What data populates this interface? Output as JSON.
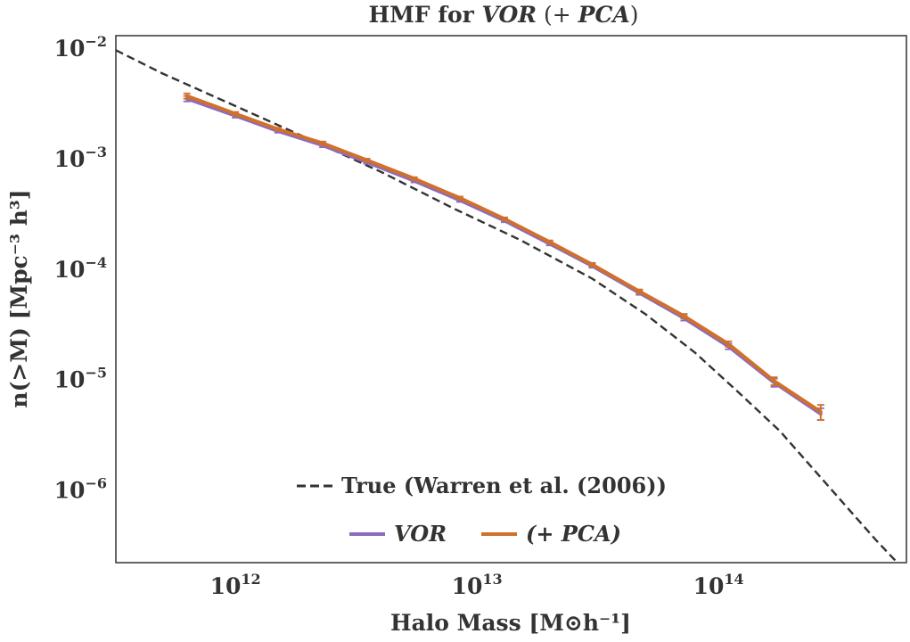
{
  "chart_data": {
    "type": "line",
    "title_prefix": "HMF for ",
    "title_emph1": "VOR",
    "title_mid": " (+ ",
    "title_emph2": "PCA",
    "title_suffix": ")",
    "xlabel": "Halo Mass [M⊙h⁻¹]",
    "ylabel": "n(>M) [Mpc⁻³ h³]",
    "x_scale": "log",
    "y_scale": "log",
    "xlim": [
      320000000000.0,
      600000000000000.0
    ],
    "ylim": [
      2.2e-07,
      0.013
    ],
    "x_ticks": [
      {
        "value": 1000000000000.0,
        "base": "10",
        "exp": "12"
      },
      {
        "value": 10000000000000.0,
        "base": "10",
        "exp": "13"
      },
      {
        "value": 100000000000000.0,
        "base": "10",
        "exp": "14"
      }
    ],
    "y_ticks": [
      {
        "value": 0.01,
        "base": "10",
        "exp": "−2"
      },
      {
        "value": 0.001,
        "base": "10",
        "exp": "−3"
      },
      {
        "value": 0.0001,
        "base": "10",
        "exp": "−4"
      },
      {
        "value": 1e-05,
        "base": "10",
        "exp": "−5"
      },
      {
        "value": 1e-06,
        "base": "10",
        "exp": "−6"
      }
    ],
    "grid": false,
    "legend_placement": "bottom-center",
    "series": [
      {
        "name": "True (Warren et al. (2006))",
        "style": "dashed",
        "color": "#333333",
        "x": [
          320000000000.0,
          500000000000.0,
          1000000000000.0,
          2000000000000.0,
          4000000000000.0,
          8000000000000.0,
          15000000000000.0,
          30000000000000.0,
          50000000000000.0,
          80000000000000.0,
          120000000000000.0,
          180000000000000.0,
          250000000000000.0,
          350000000000000.0,
          450000000000000.0,
          600000000000000.0
        ],
        "y": [
          0.0096,
          0.0059,
          0.003,
          0.00152,
          0.00076,
          0.000355,
          0.000185,
          8.2e-05,
          3.9e-05,
          1.75e-05,
          7.8e-06,
          3.4e-06,
          1.5e-06,
          6.5e-07,
          3.5e-07,
          1.8e-07
        ]
      },
      {
        "name": "VOR",
        "style": "solid",
        "color": "#8c6bbf",
        "x": [
          630000000000.0,
          1000000000000.0,
          1500000000000.0,
          2300000000000.0,
          3500000000000.0,
          5500000000000.0,
          8500000000000.0,
          13000000000000.0,
          20000000000000.0,
          30000000000000.0,
          47000000000000.0,
          72000000000000.0,
          110000000000000.0,
          170000000000000.0,
          265000000000000.0
        ],
        "y": [
          0.0035,
          0.00245,
          0.00178,
          0.00132,
          0.00093,
          0.00063,
          0.00042,
          0.000275,
          0.00017,
          0.000107,
          6.1e-05,
          3.6e-05,
          2e-05,
          9.4e-06,
          4.9e-06
        ],
        "err": [
          0.0002,
          0.0001,
          6e-05,
          5e-05,
          3e-05,
          2e-05,
          1.4e-05,
          9e-06,
          6e-06,
          4e-06,
          2.5e-06,
          1.8e-06,
          1.2e-06,
          8e-07,
          6e-07
        ]
      },
      {
        "name": "(+ PCA)",
        "style": "solid",
        "color": "#d0702b",
        "x": [
          630000000000.0,
          1000000000000.0,
          1500000000000.0,
          2300000000000.0,
          3500000000000.0,
          5500000000000.0,
          8500000000000.0,
          13000000000000.0,
          20000000000000.0,
          30000000000000.0,
          47000000000000.0,
          72000000000000.0,
          110000000000000.0,
          170000000000000.0,
          265000000000000.0
        ],
        "y": [
          0.0037,
          0.00255,
          0.00185,
          0.00138,
          0.00097,
          0.00066,
          0.00044,
          0.000285,
          0.000176,
          0.00011,
          6.3e-05,
          3.75e-05,
          2.1e-05,
          9.7e-06,
          5.1e-06
        ],
        "err": [
          0.0002,
          0.0001,
          6e-05,
          5e-05,
          3e-05,
          2e-05,
          1.4e-05,
          9e-06,
          6e-06,
          4e-06,
          2.5e-06,
          1.8e-06,
          1.2e-06,
          8e-07,
          8e-07
        ]
      }
    ],
    "legend": {
      "row1": [
        {
          "label": "True (Warren et al. (2006))",
          "style": "dashed",
          "color": "#333333",
          "italic": false
        }
      ],
      "row2": [
        {
          "label": "VOR",
          "style": "solid",
          "color": "#8c6bbf",
          "italic": true
        },
        {
          "label": "(+ PCA)",
          "style": "solid",
          "color": "#d0702b",
          "italic": true
        }
      ]
    }
  }
}
